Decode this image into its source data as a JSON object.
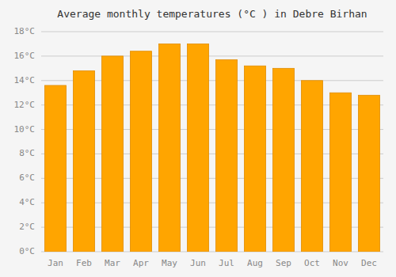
{
  "chart_data": {
    "type": "bar",
    "title": "Average monthly temperatures (°C ) in Debre Birhan",
    "categories": [
      "Jan",
      "Feb",
      "Mar",
      "Apr",
      "May",
      "Jun",
      "Jul",
      "Aug",
      "Sep",
      "Oct",
      "Nov",
      "Dec"
    ],
    "values": [
      13.6,
      14.8,
      16.0,
      16.4,
      17.0,
      17.0,
      15.7,
      15.2,
      15.0,
      14.0,
      13.0,
      12.8
    ],
    "color": "#FFA500",
    "ylim": [
      0,
      18
    ],
    "yticks": [
      {
        "value": 0,
        "label": "0°C"
      },
      {
        "value": 2,
        "label": "2°C"
      },
      {
        "value": 4,
        "label": "4°C"
      },
      {
        "value": 6,
        "label": "6°C"
      },
      {
        "value": 8,
        "label": "8°C"
      },
      {
        "value": 10,
        "label": "10°C"
      },
      {
        "value": 12,
        "label": "12°C"
      },
      {
        "value": 14,
        "label": "14°C"
      },
      {
        "value": 16,
        "label": "16°C"
      },
      {
        "value": 18,
        "label": "18°C"
      }
    ],
    "grid": true
  }
}
